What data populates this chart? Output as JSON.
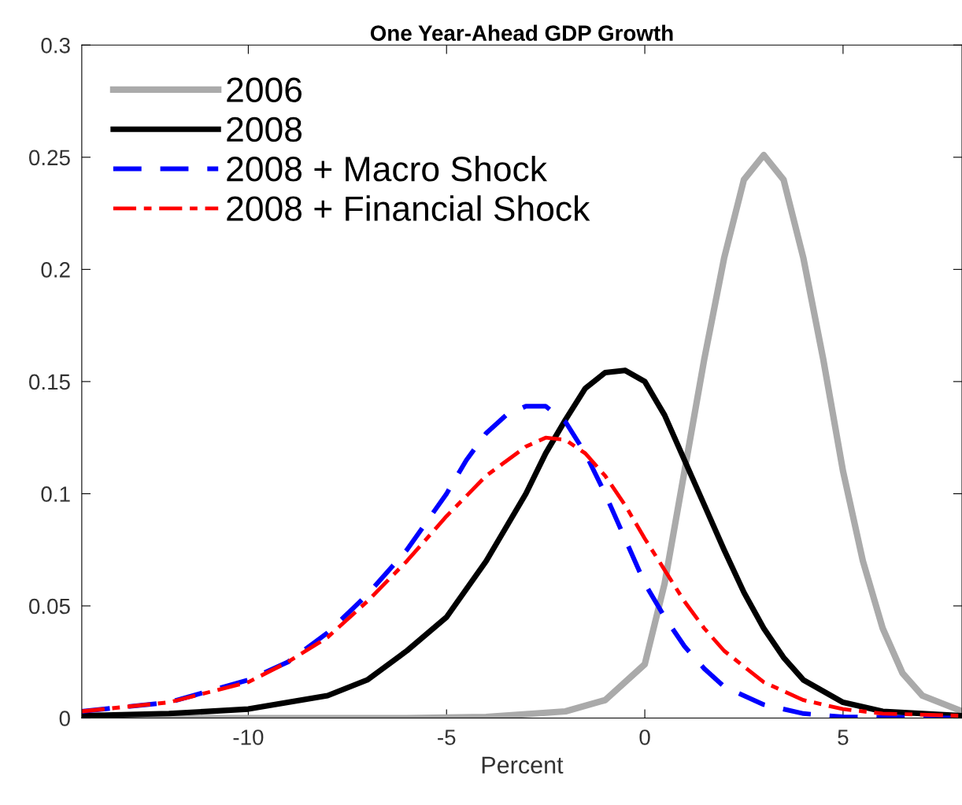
{
  "chart_data": {
    "type": "line",
    "title": "One Year-Ahead GDP Growth",
    "xlabel": "Percent",
    "xlim": [
      -14.2,
      8
    ],
    "xticks": [
      {
        "value": -10,
        "label": "-10"
      },
      {
        "value": -5,
        "label": "-5"
      },
      0,
      5
    ],
    "ylim": [
      0,
      0.3
    ],
    "yticks": [
      0,
      0.05,
      0.1,
      0.15,
      0.2,
      0.25,
      0.3
    ],
    "grid": false,
    "legend": "top left",
    "marker": "none",
    "series": [
      {
        "name": "2006",
        "color": "#aaaaaa",
        "line_style": "solid",
        "x": [
          -14.2,
          -6,
          -4,
          -2,
          -1,
          0,
          0.5,
          1,
          1.5,
          2,
          2.5,
          3,
          3.5,
          4,
          4.5,
          5,
          5.5,
          6,
          6.5,
          7,
          8
        ],
        "values": [
          0,
          0,
          0.0005,
          0.003,
          0.008,
          0.024,
          0.06,
          0.11,
          0.16,
          0.205,
          0.24,
          0.251,
          0.24,
          0.205,
          0.16,
          0.11,
          0.07,
          0.04,
          0.02,
          0.01,
          0.003
        ]
      },
      {
        "name": "2008",
        "color": "#000000",
        "line_style": "solid",
        "x": [
          -14.2,
          -12,
          -10,
          -8,
          -7,
          -6,
          -5,
          -4,
          -3,
          -2.5,
          -2,
          -1.5,
          -1,
          -0.5,
          0,
          0.5,
          1,
          1.5,
          2,
          2.5,
          3,
          3.5,
          4,
          5,
          6,
          8
        ],
        "values": [
          0.001,
          0.002,
          0.004,
          0.01,
          0.017,
          0.03,
          0.045,
          0.07,
          0.1,
          0.118,
          0.133,
          0.147,
          0.154,
          0.155,
          0.15,
          0.135,
          0.115,
          0.095,
          0.075,
          0.056,
          0.04,
          0.027,
          0.017,
          0.007,
          0.003,
          0.001
        ]
      },
      {
        "name": "2008 + Macro Shock",
        "color": "#0000ff",
        "line_style": "dashed",
        "x": [
          -14.2,
          -12,
          -10,
          -9,
          -8,
          -7,
          -6,
          -5,
          -4.5,
          -4,
          -3.5,
          -3,
          -2.5,
          -2,
          -1.5,
          -1,
          -0.5,
          0,
          0.5,
          1,
          1.5,
          2,
          3,
          4,
          5,
          8
        ],
        "values": [
          0.003,
          0.007,
          0.017,
          0.025,
          0.038,
          0.055,
          0.075,
          0.1,
          0.115,
          0.127,
          0.135,
          0.139,
          0.139,
          0.132,
          0.118,
          0.1,
          0.08,
          0.06,
          0.045,
          0.032,
          0.022,
          0.014,
          0.006,
          0.002,
          0.0005,
          0
        ]
      },
      {
        "name": "2008 + Financial Shock",
        "color": "#ff0000",
        "line_style": "dashdot",
        "x": [
          -14.2,
          -12,
          -10,
          -9,
          -8,
          -7,
          -6,
          -5,
          -4,
          -3,
          -2.5,
          -2,
          -1.5,
          -1,
          -0.5,
          0,
          0.5,
          1,
          1.5,
          2,
          3,
          4,
          5,
          6,
          8
        ],
        "values": [
          0.003,
          0.007,
          0.016,
          0.025,
          0.036,
          0.052,
          0.07,
          0.09,
          0.108,
          0.121,
          0.125,
          0.124,
          0.118,
          0.108,
          0.095,
          0.08,
          0.066,
          0.052,
          0.04,
          0.03,
          0.016,
          0.008,
          0.004,
          0.002,
          0.001
        ]
      }
    ]
  }
}
